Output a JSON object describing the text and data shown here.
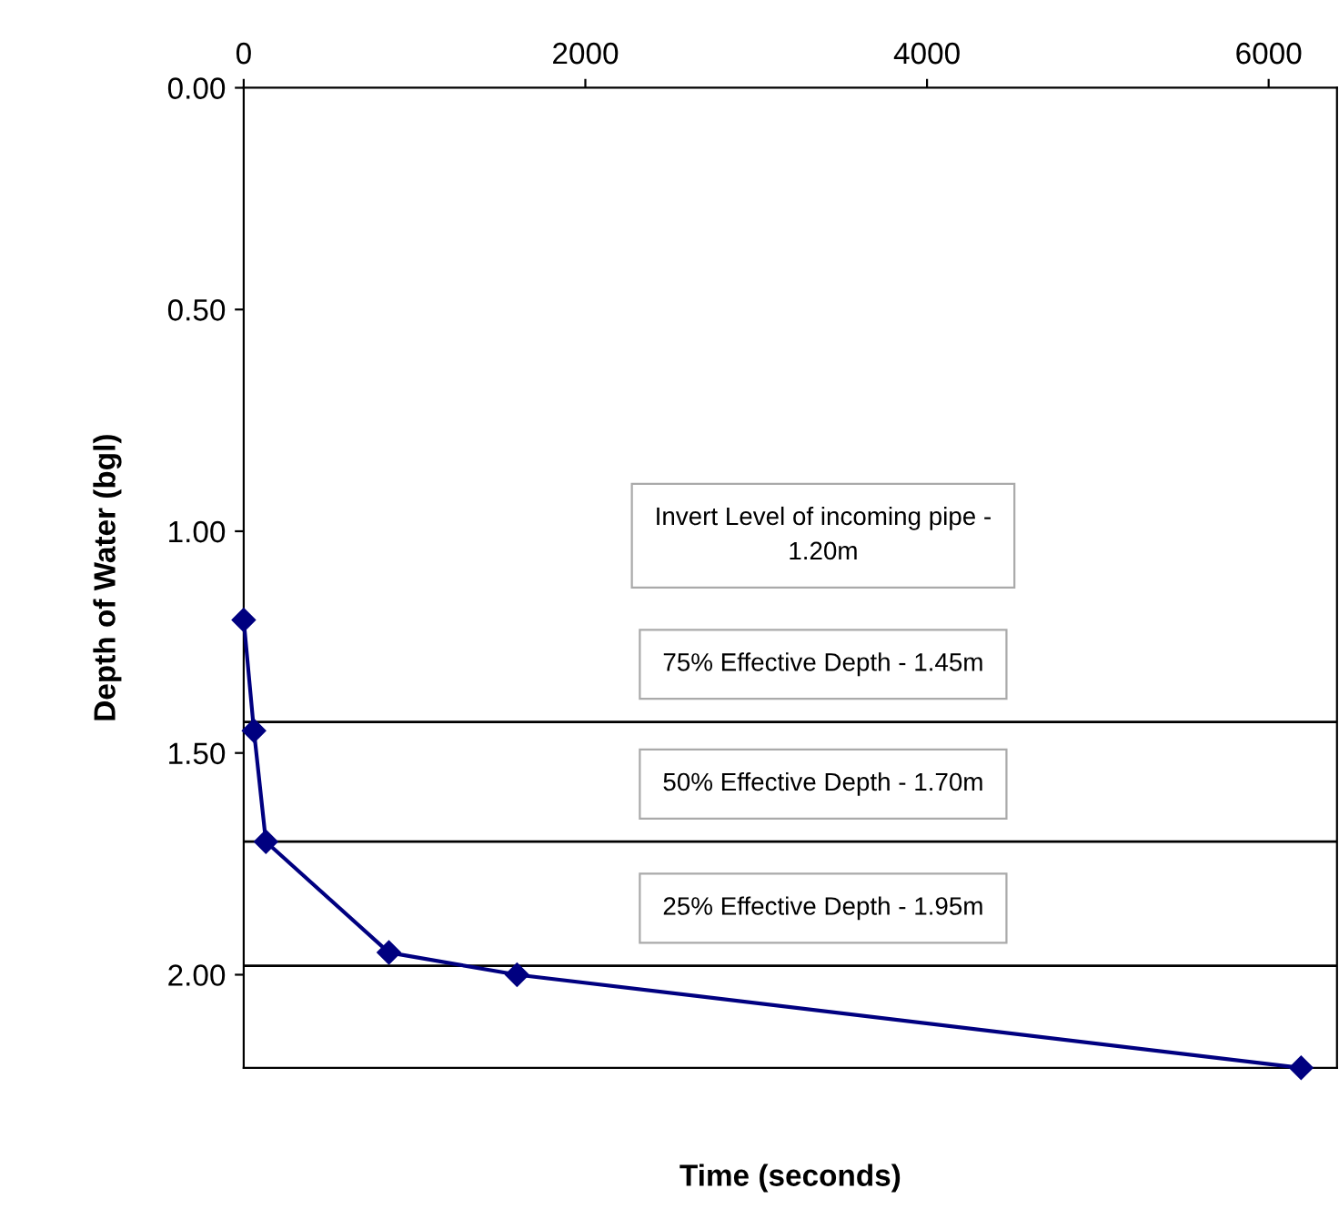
{
  "chart_data": {
    "type": "line",
    "xlabel": "Time (seconds)",
    "ylabel": "Depth of Water (bgl)",
    "x": [
      0,
      60,
      130,
      850,
      1600,
      6190
    ],
    "series": [
      {
        "color": "#000080",
        "values": [
          1.2,
          1.45,
          1.7,
          1.95,
          2.0,
          2.21
        ]
      }
    ],
    "marker": "diamond",
    "line_style": "solid",
    "grid": false,
    "legend": false,
    "xlim": [
      0,
      6400
    ],
    "xticks": [
      0,
      2000,
      4000,
      6000
    ],
    "ylim": [
      2.21,
      0
    ],
    "yticks": [
      {
        "value": 0,
        "label": "0.00"
      },
      {
        "value": 0.5,
        "label": "0.50"
      },
      {
        "value": 1.0,
        "label": "1.00"
      },
      {
        "value": 1.5,
        "label": "1.50"
      },
      {
        "value": 2.0,
        "label": "2.00"
      }
    ],
    "ref_lines": [
      {
        "axis": "y",
        "value": 1.43,
        "label": "75% Effective Depth - 1.45m",
        "color": "#000000"
      },
      {
        "axis": "y",
        "value": 1.7,
        "label": "50% Effective Depth - 1.70m",
        "color": "#000000"
      },
      {
        "axis": "y",
        "value": 1.98,
        "label": "25% Effective Depth - 1.95m",
        "color": "#000000"
      }
    ],
    "annotations": [
      "Invert Level of incoming pipe -\n1.20m"
    ]
  }
}
